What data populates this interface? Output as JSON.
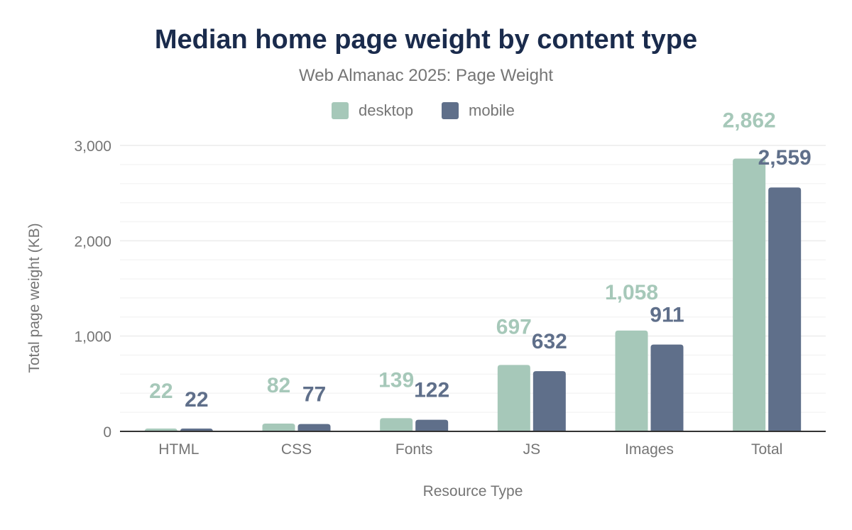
{
  "chart_data": {
    "type": "bar",
    "title": "Median home page weight by content type",
    "subtitle": "Web Almanac 2025: Page Weight",
    "xlabel": "Resource Type",
    "ylabel": "Total page weight (KB)",
    "ylim": [
      0,
      3000
    ],
    "yticks": [
      0,
      1000,
      2000,
      3000
    ],
    "ytick_labels": [
      "0",
      "1,000",
      "2,000",
      "3,000"
    ],
    "minor_grid_step": 200,
    "grid": true,
    "legend_position": "top",
    "categories": [
      "HTML",
      "CSS",
      "Fonts",
      "JS",
      "Images",
      "Total"
    ],
    "series": [
      {
        "name": "desktop",
        "color": "#a6c8b9",
        "values": [
          22,
          82,
          139,
          697,
          1058,
          2862
        ],
        "labels": [
          "22",
          "82",
          "139",
          "697",
          "1,058",
          "2,862"
        ]
      },
      {
        "name": "mobile",
        "color": "#5f6f8a",
        "values": [
          22,
          77,
          122,
          632,
          911,
          2559
        ],
        "labels": [
          "22",
          "77",
          "122",
          "632",
          "911",
          "2,559"
        ]
      }
    ]
  }
}
